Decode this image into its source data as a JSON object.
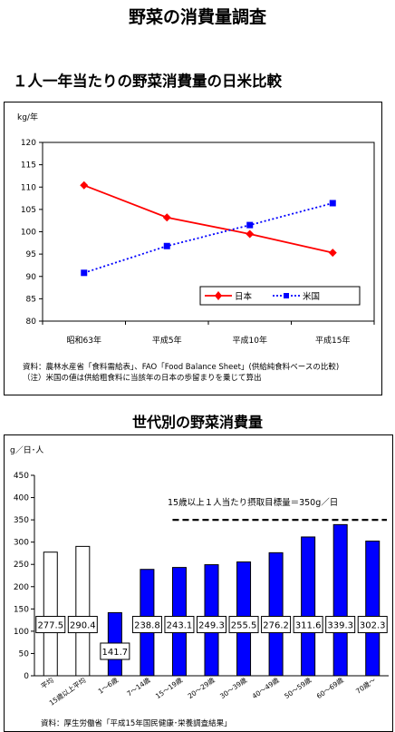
{
  "page": {
    "title": "野菜の消費量調査",
    "section1_title": "１人一年当たりの野菜消費量の日米比較",
    "section2_title": "世代別の野菜消費量"
  },
  "chart_data": [
    {
      "type": "line",
      "ylabel": "kg/年",
      "ylim": [
        80,
        120
      ],
      "yticks": [
        "80",
        "85",
        "90",
        "95",
        "100",
        "105",
        "110",
        "115",
        "120"
      ],
      "categories": [
        "昭和63年",
        "平成5年",
        "平成10年",
        "平成15年"
      ],
      "series": [
        {
          "name": "日本",
          "color": "#ff0000",
          "marker": "diamond",
          "style": "solid",
          "values": [
            110.4,
            103.2,
            99.5,
            95.3
          ]
        },
        {
          "name": "米国",
          "color": "#0000ff",
          "marker": "square",
          "style": "dotted",
          "values": [
            90.8,
            96.8,
            101.5,
            106.4
          ]
        }
      ],
      "legend_position": "bottom-right",
      "notes": [
        "資料：農林水産省「食料需給表」、FAO「Food Balance Sheet」(供給純食料ベースの比較)",
        "（注）米国の値は供給粗食料に当該年の日本の歩留まりを乗じて算出"
      ]
    },
    {
      "type": "bar",
      "ylabel": "g／日･人",
      "ylim": [
        0,
        450
      ],
      "yticks": [
        "0",
        "50",
        "100",
        "150",
        "200",
        "250",
        "300",
        "350",
        "400",
        "450"
      ],
      "categories": [
        "平均",
        "15歳以上平均",
        "1～6歳",
        "7～14歳",
        "15～19歳",
        "20～29歳",
        "30～39歳",
        "40～49歳",
        "50～59歳",
        "60～69歳",
        "70歳～"
      ],
      "values": [
        277.5,
        290.4,
        141.7,
        238.8,
        243.1,
        249.3,
        255.5,
        276.2,
        311.6,
        339.3,
        302.3
      ],
      "value_labels": [
        "277.5",
        "290.4",
        "141.7",
        "238.8",
        "243.1",
        "249.3",
        "255.5",
        "276.2",
        "311.6",
        "339.3",
        "302.3"
      ],
      "bar_fill": [
        "#ffffff",
        "#ffffff",
        "#0000ff",
        "#0000ff",
        "#0000ff",
        "#0000ff",
        "#0000ff",
        "#0000ff",
        "#0000ff",
        "#0000ff",
        "#0000ff"
      ],
      "target_line": {
        "value": 350,
        "label": "15歳以上１人当たり摂取目標量＝350g／日"
      },
      "notes": [
        "資料：厚生労働省「平成15年国民健康･栄養調査結果」"
      ]
    }
  ]
}
